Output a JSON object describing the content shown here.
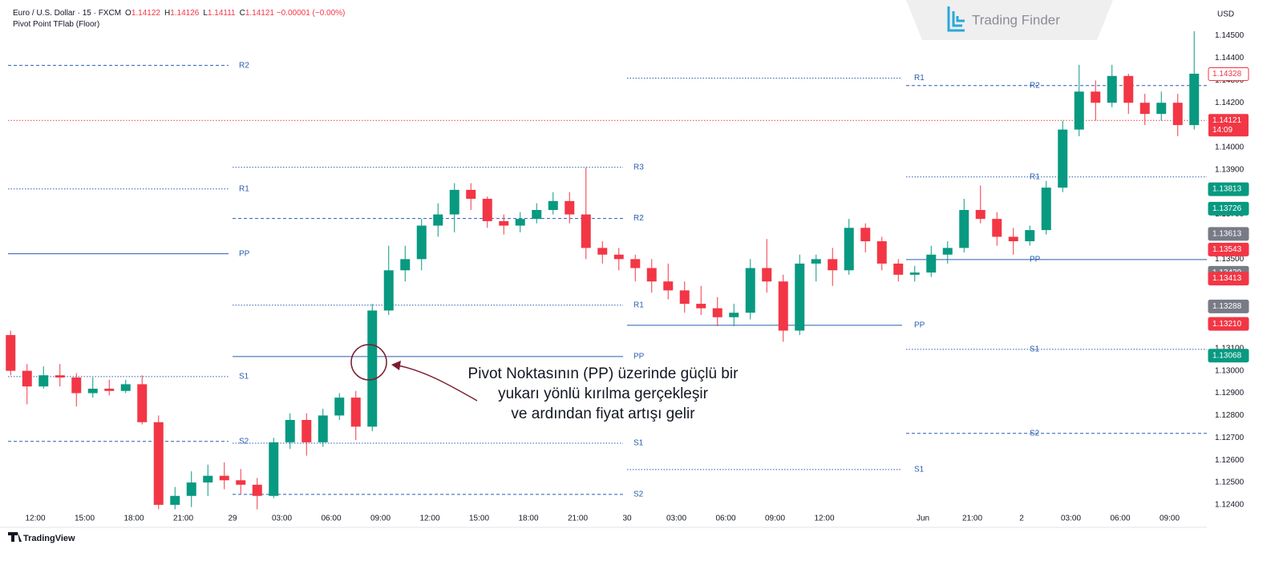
{
  "chart_data": {
    "type": "candlestick",
    "header": {
      "symbol": "Euro / U.S. Dollar · 15 · FXCM",
      "ohlc": [
        {
          "key": "O",
          "value": "1.14122"
        },
        {
          "key": "H",
          "value": "1.14126"
        },
        {
          "key": "L",
          "value": "1.14111"
        },
        {
          "key": "C",
          "value": "1.14121"
        }
      ],
      "change": "−0.00001 (−0.00%)",
      "indicator": "Pivot Point TFlab (Floor)"
    },
    "currency": "USD",
    "brand": "Trading Finder",
    "footer": "TradingView",
    "annotation": [
      "Pivot Noktasının (PP) üzerinde güçlü bir",
      "yukarı yönlü kırılma gerçekleşir",
      "ve ardından fiyat artışı gelir"
    ],
    "annotation_color": "#7b1c2e",
    "up_color": "#089981",
    "down_color": "#f23645",
    "pivot_color": "#2a5cb0",
    "categories": [
      null,
      null,
      "12:00",
      null,
      null,
      "15:00",
      null,
      null,
      "18:00",
      null,
      null,
      "21:00",
      null,
      null,
      "29",
      null,
      null,
      "03:00",
      null,
      null,
      "06:00",
      null,
      null,
      "09:00",
      null,
      null,
      "12:00",
      null,
      null,
      "15:00",
      null,
      null,
      "18:00",
      null,
      null,
      "21:00",
      null,
      null,
      "30",
      null,
      null,
      "03:00",
      null,
      null,
      "06:00",
      null,
      null,
      "09:00",
      null,
      null,
      "12:00",
      null,
      null,
      null,
      null,
      null,
      "Jun",
      null,
      null,
      "21:00",
      null,
      null,
      "2",
      null,
      null,
      "03:00",
      null,
      null,
      "06:00",
      null,
      null,
      "09:00",
      null
    ],
    "open": [
      1.1316,
      1.13,
      1.1293,
      1.1298,
      1.1297,
      1.129,
      1.1292,
      1.1291,
      1.1294,
      1.1277,
      1.124,
      1.1244,
      1.125,
      1.1253,
      1.1251,
      1.1249,
      1.1244,
      1.1268,
      1.1278,
      1.1268,
      1.128,
      1.1288,
      1.1275,
      1.1327,
      1.1345,
      1.135,
      1.1365,
      1.137,
      1.1381,
      1.1377,
      1.1367,
      1.1365,
      1.1368,
      1.1372,
      1.1376,
      1.137,
      1.1355,
      1.1352,
      1.135,
      1.1346,
      1.134,
      1.1336,
      1.133,
      1.1328,
      1.1324,
      1.1326,
      1.1346,
      1.134,
      1.1318,
      1.1348,
      1.135,
      1.1345,
      1.1364,
      1.1358,
      1.1348,
      1.1343,
      1.1344,
      1.1352,
      1.1355,
      1.1372,
      1.1368,
      1.136,
      1.1358,
      1.1363,
      1.1382,
      1.1408,
      1.1425,
      1.142,
      1.1432,
      1.142,
      1.1415,
      1.142,
      1.141
    ],
    "high": [
      1.1318,
      1.1303,
      1.1302,
      1.1303,
      1.1299,
      1.1297,
      1.1296,
      1.1296,
      1.1298,
      1.128,
      1.1248,
      1.1255,
      1.1258,
      1.1259,
      1.1256,
      1.1252,
      1.127,
      1.1281,
      1.1281,
      1.1283,
      1.129,
      1.1291,
      1.133,
      1.1356,
      1.1356,
      1.1368,
      1.1375,
      1.1384,
      1.1384,
      1.1378,
      1.137,
      1.1371,
      1.1375,
      1.138,
      1.138,
      1.1391,
      1.1358,
      1.1355,
      1.1352,
      1.135,
      1.1348,
      1.134,
      1.1338,
      1.1333,
      1.133,
      1.135,
      1.1359,
      1.1343,
      1.1352,
      1.1352,
      1.1355,
      1.1368,
      1.1366,
      1.136,
      1.135,
      1.1347,
      1.1356,
      1.1358,
      1.1377,
      1.1383,
      1.1371,
      1.1364,
      1.1365,
      1.1385,
      1.1412,
      1.1437,
      1.143,
      1.1437,
      1.1433,
      1.1424,
      1.1425,
      1.1424,
      1.1452
    ],
    "low": [
      1.1298,
      1.1285,
      1.1292,
      1.1293,
      1.1284,
      1.1288,
      1.1289,
      1.129,
      1.1276,
      1.1238,
      1.1238,
      1.1239,
      1.1244,
      1.1247,
      1.1245,
      1.1238,
      1.1243,
      1.1265,
      1.1262,
      1.1266,
      1.1278,
      1.1269,
      1.1273,
      1.1325,
      1.134,
      1.1345,
      1.136,
      1.1362,
      1.1372,
      1.1364,
      1.1361,
      1.1362,
      1.1366,
      1.137,
      1.1366,
      1.135,
      1.1348,
      1.1345,
      1.134,
      1.1335,
      1.1332,
      1.1326,
      1.1325,
      1.132,
      1.132,
      1.1323,
      1.1335,
      1.1313,
      1.1316,
      1.134,
      1.1338,
      1.1343,
      1.1353,
      1.1345,
      1.134,
      1.134,
      1.1342,
      1.1348,
      1.1353,
      1.1366,
      1.1356,
      1.1352,
      1.1356,
      1.1361,
      1.138,
      1.1405,
      1.1412,
      1.1418,
      1.1415,
      1.141,
      1.1412,
      1.1405,
      1.1408
    ],
    "close": [
      1.13,
      1.1293,
      1.1298,
      1.1297,
      1.129,
      1.1292,
      1.1291,
      1.1294,
      1.1277,
      1.124,
      1.1244,
      1.125,
      1.1253,
      1.1251,
      1.1249,
      1.1244,
      1.1268,
      1.1278,
      1.1268,
      1.128,
      1.1288,
      1.1275,
      1.1327,
      1.1345,
      1.135,
      1.1365,
      1.137,
      1.1381,
      1.1377,
      1.1367,
      1.1365,
      1.1368,
      1.1372,
      1.1376,
      1.137,
      1.1355,
      1.1352,
      1.135,
      1.1346,
      1.134,
      1.1336,
      1.133,
      1.1328,
      1.1324,
      1.1326,
      1.1346,
      1.134,
      1.1318,
      1.1348,
      1.135,
      1.1345,
      1.1364,
      1.1358,
      1.1348,
      1.1343,
      1.1344,
      1.1352,
      1.1355,
      1.1372,
      1.1368,
      1.136,
      1.1358,
      1.1363,
      1.1382,
      1.1408,
      1.1425,
      1.142,
      1.1432,
      1.142,
      1.1415,
      1.142,
      1.141,
      1.1433
    ],
    "ylim": [
      1.1231,
      1.1466
    ],
    "yticks": [
      {
        "value": 1.124,
        "label": "1.12400"
      },
      {
        "value": 1.125,
        "label": "1.12500"
      },
      {
        "value": 1.126,
        "label": "1.12600"
      },
      {
        "value": 1.127,
        "label": "1.12700"
      },
      {
        "value": 1.128,
        "label": "1.12800"
      },
      {
        "value": 1.129,
        "label": "1.12900"
      },
      {
        "value": 1.13,
        "label": "1.13000"
      },
      {
        "value": 1.131,
        "label": "1.13100"
      },
      {
        "value": 1.132,
        "label": "1.13200"
      },
      {
        "value": 1.133,
        "label": "1.13300"
      },
      {
        "value": 1.134,
        "label": "1.13400"
      },
      {
        "value": 1.135,
        "label": "1.13500"
      },
      {
        "value": 1.136,
        "label": "1.13600"
      },
      {
        "value": 1.137,
        "label": "1.13700"
      },
      {
        "value": 1.138,
        "label": "1.13800"
      },
      {
        "value": 1.139,
        "label": "1.13900"
      },
      {
        "value": 1.14,
        "label": "1.14000"
      },
      {
        "value": 1.141,
        "label": "1.14100"
      },
      {
        "value": 1.142,
        "label": "1.14200"
      },
      {
        "value": 1.143,
        "label": "1.14300"
      },
      {
        "value": 1.144,
        "label": "1.14400"
      },
      {
        "value": 1.145,
        "label": "1.14500"
      }
    ],
    "pivots": [
      {
        "levels": [
          {
            "name": "R2",
            "value": 1.14367,
            "style": "dashed"
          },
          {
            "name": "R1",
            "value": 1.13814,
            "style": "dotted"
          },
          {
            "name": "PP",
            "value": 1.13524,
            "style": "solid"
          },
          {
            "name": "S1",
            "value": 1.12974,
            "style": "dotted"
          },
          {
            "name": "S2",
            "value": 1.12684,
            "style": "dashed"
          }
        ]
      },
      {
        "levels": [
          {
            "name": "R3",
            "value": 1.13911,
            "style": "dotted"
          },
          {
            "name": "R2",
            "value": 1.13682,
            "style": "dashed"
          },
          {
            "name": "R1",
            "value": 1.13294,
            "style": "dotted"
          },
          {
            "name": "PP",
            "value": 1.13064,
            "style": "solid"
          },
          {
            "name": "S1",
            "value": 1.12676,
            "style": "dotted"
          },
          {
            "name": "S2",
            "value": 1.12447,
            "style": "dashed"
          }
        ]
      },
      {
        "levels": [
          {
            "name": "R1",
            "value": 1.1431,
            "style": "dotted"
          },
          {
            "name": "PP",
            "value": 1.13204,
            "style": "solid"
          },
          {
            "name": "S1",
            "value": 1.12558,
            "style": "dotted"
          }
        ]
      },
      {
        "levels": [
          {
            "name": "R2",
            "value": 1.14277,
            "style": "dashed"
          },
          {
            "name": "R1",
            "value": 1.13868,
            "style": "dotted"
          },
          {
            "name": "PP",
            "value": 1.13498,
            "style": "solid"
          },
          {
            "name": "S1",
            "value": 1.13096,
            "style": "dotted"
          },
          {
            "name": "S2",
            "value": 1.1272,
            "style": "dashed"
          }
        ]
      }
    ],
    "last_price": {
      "value": 1.14121,
      "label": "1.14121",
      "countdown": "14:09",
      "color": "#f23645"
    },
    "badges": [
      {
        "value": 1.14328,
        "label": "1.14328",
        "color": "#f23645",
        "outline": true
      },
      {
        "value": 1.13813,
        "label": "1.13813",
        "color": "#089981",
        "outline": false
      },
      {
        "value": 1.13726,
        "label": "1.13726",
        "color": "#089981",
        "outline": false
      },
      {
        "value": 1.13613,
        "label": "1.13613",
        "color": "#787b86",
        "outline": false
      },
      {
        "value": 1.13543,
        "label": "1.13543",
        "color": "#f23645",
        "outline": false
      },
      {
        "value": 1.13439,
        "label": "1.13439",
        "color": "#787b86",
        "outline": false
      },
      {
        "value": 1.13413,
        "label": "1.13413",
        "color": "#f23645",
        "outline": false
      },
      {
        "value": 1.13288,
        "label": "1.13288",
        "color": "#787b86",
        "outline": false
      },
      {
        "value": 1.1321,
        "label": "1.13210",
        "color": "#f23645",
        "outline": false
      },
      {
        "value": 1.13068,
        "label": "1.13068",
        "color": "#089981",
        "outline": false
      }
    ]
  }
}
